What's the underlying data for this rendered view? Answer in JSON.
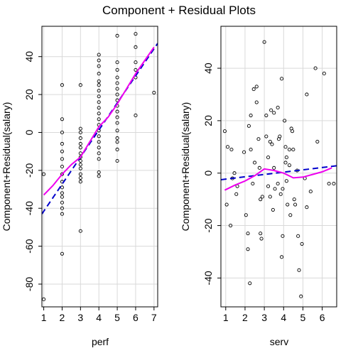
{
  "title": "Component + Residual Plots",
  "colors": {
    "grid": "#d9d9d9",
    "points": "#000000",
    "fit": "#0000cc",
    "smooth": "#ee00ee",
    "frame": "#000000"
  },
  "chart_data": [
    {
      "type": "scatter",
      "xlabel": "perf",
      "ylabel": "Component+Residual(salary)",
      "xlim": [
        0.9,
        7.2
      ],
      "ylim": [
        -92,
        56
      ],
      "xticks": [
        1,
        2,
        3,
        4,
        5,
        6,
        7
      ],
      "yticks": [
        -80,
        -60,
        -40,
        -20,
        0,
        20,
        40
      ],
      "grid": true,
      "points": [
        [
          1,
          -88
        ],
        [
          1,
          -22
        ],
        [
          2,
          25
        ],
        [
          2,
          7
        ],
        [
          2,
          0
        ],
        [
          2,
          -6
        ],
        [
          2,
          -10
        ],
        [
          2,
          -14
        ],
        [
          2,
          -18
        ],
        [
          2,
          -22
        ],
        [
          2,
          -26
        ],
        [
          2,
          -29
        ],
        [
          2,
          -32
        ],
        [
          2,
          -34
        ],
        [
          2,
          -37
        ],
        [
          2,
          -40
        ],
        [
          2,
          -43
        ],
        [
          2,
          -64
        ],
        [
          3,
          25
        ],
        [
          3,
          2
        ],
        [
          3,
          0
        ],
        [
          3,
          -3
        ],
        [
          3,
          -6
        ],
        [
          3,
          -8
        ],
        [
          3,
          -11
        ],
        [
          3,
          -13
        ],
        [
          3,
          -15
        ],
        [
          3,
          -17
        ],
        [
          3,
          -19
        ],
        [
          3,
          -22
        ],
        [
          3,
          -24
        ],
        [
          3,
          -26
        ],
        [
          3,
          -52
        ],
        [
          4,
          41
        ],
        [
          4,
          38
        ],
        [
          4,
          35
        ],
        [
          4,
          31
        ],
        [
          4,
          27
        ],
        [
          4,
          25
        ],
        [
          4,
          22
        ],
        [
          4,
          19
        ],
        [
          4,
          16
        ],
        [
          4,
          13
        ],
        [
          4,
          10
        ],
        [
          4,
          7
        ],
        [
          4,
          4
        ],
        [
          4,
          1
        ],
        [
          4,
          -2
        ],
        [
          4,
          -5
        ],
        [
          4,
          -8
        ],
        [
          4,
          -11
        ],
        [
          4,
          -14
        ],
        [
          4,
          -21
        ],
        [
          4,
          -23
        ],
        [
          5,
          51
        ],
        [
          5,
          37
        ],
        [
          5,
          33
        ],
        [
          5,
          29
        ],
        [
          5,
          26
        ],
        [
          5,
          23
        ],
        [
          5,
          20
        ],
        [
          5,
          17
        ],
        [
          5,
          14
        ],
        [
          5,
          11
        ],
        [
          5,
          8
        ],
        [
          5,
          5
        ],
        [
          5,
          1
        ],
        [
          5,
          -3
        ],
        [
          5,
          -5
        ],
        [
          5,
          -9
        ],
        [
          5,
          -15
        ],
        [
          6,
          52
        ],
        [
          6,
          45
        ],
        [
          6,
          37
        ],
        [
          6,
          33
        ],
        [
          6,
          29
        ],
        [
          6,
          9
        ],
        [
          7,
          21
        ]
      ],
      "fit_line": {
        "x": [
          0.9,
          7.2
        ],
        "y": [
          -43,
          47
        ]
      },
      "smooth": {
        "x": [
          1,
          1.5,
          2,
          2.5,
          3,
          3.5,
          4,
          4.5,
          5,
          5.5,
          6,
          6.5,
          7
        ],
        "y": [
          -33,
          -28,
          -22,
          -17,
          -13,
          -5,
          3,
          8,
          15,
          23,
          31,
          38,
          45
        ]
      }
    },
    {
      "type": "scatter",
      "xlabel": "serv",
      "ylabel": "Component+Residual(salary)",
      "xlim": [
        0.75,
        6.75
      ],
      "ylim": [
        -51,
        56
      ],
      "xticks": [
        1,
        2,
        3,
        4,
        5,
        6
      ],
      "yticks": [
        -40,
        -20,
        0,
        20,
        40
      ],
      "grid": true,
      "points": [
        [
          0.95,
          16
        ],
        [
          1.05,
          -12
        ],
        [
          1.1,
          10
        ],
        [
          1.3,
          9
        ],
        [
          1.45,
          0
        ],
        [
          1.55,
          -8
        ],
        [
          1.6,
          -5
        ],
        [
          1.25,
          -20
        ],
        [
          1.35,
          -2
        ],
        [
          1.95,
          8
        ],
        [
          2.05,
          -16
        ],
        [
          2.15,
          -23
        ],
        [
          2.15,
          -29
        ],
        [
          2.2,
          18
        ],
        [
          2.3,
          22
        ],
        [
          2.3,
          9
        ],
        [
          2.25,
          -42
        ],
        [
          2.4,
          -4
        ],
        [
          2.45,
          32
        ],
        [
          2.5,
          4
        ],
        [
          2.6,
          33
        ],
        [
          2.6,
          27
        ],
        [
          2.7,
          13
        ],
        [
          2.75,
          2
        ],
        [
          2.8,
          -10
        ],
        [
          2.8,
          -23
        ],
        [
          2.85,
          -25
        ],
        [
          2.9,
          -9
        ],
        [
          3,
          50
        ],
        [
          3.1,
          22
        ],
        [
          3.1,
          14
        ],
        [
          3.2,
          6
        ],
        [
          3.2,
          -5
        ],
        [
          3.3,
          -9
        ],
        [
          3.3,
          12
        ],
        [
          3.35,
          24
        ],
        [
          3.4,
          11
        ],
        [
          3.45,
          -14
        ],
        [
          3.5,
          23
        ],
        [
          3.5,
          2
        ],
        [
          3.55,
          -6
        ],
        [
          3.7,
          25
        ],
        [
          3.7,
          -4
        ],
        [
          3.75,
          13
        ],
        [
          3.8,
          14
        ],
        [
          3.85,
          -8
        ],
        [
          3.9,
          36
        ],
        [
          3.9,
          -32
        ],
        [
          3.95,
          -6
        ],
        [
          3.95,
          -24
        ],
        [
          4.05,
          20
        ],
        [
          4.1,
          10
        ],
        [
          4.1,
          4
        ],
        [
          4.15,
          6
        ],
        [
          4.15,
          -3
        ],
        [
          4.2,
          -12
        ],
        [
          4.3,
          3
        ],
        [
          4.3,
          9
        ],
        [
          4.35,
          -16
        ],
        [
          4.4,
          17
        ],
        [
          4.45,
          16
        ],
        [
          4.5,
          9
        ],
        [
          4.55,
          -10
        ],
        [
          4.6,
          -12
        ],
        [
          4.7,
          1
        ],
        [
          4.75,
          -24
        ],
        [
          4.8,
          -37
        ],
        [
          4.9,
          -47
        ],
        [
          4.95,
          -27
        ],
        [
          5.2,
          30
        ],
        [
          5.1,
          -2
        ],
        [
          5.2,
          -13
        ],
        [
          5.4,
          -7
        ],
        [
          5.65,
          40
        ],
        [
          5.75,
          12
        ],
        [
          6.1,
          38
        ],
        [
          6.35,
          -4
        ],
        [
          6.6,
          -4
        ]
      ],
      "fit_line": {
        "x": [
          0.75,
          6.75
        ],
        "y": [
          -2.5,
          2.8
        ]
      },
      "smooth": {
        "x": [
          0.95,
          1.5,
          2,
          2.5,
          3,
          3.5,
          4,
          4.5,
          5,
          5.5,
          6,
          6.5
        ],
        "y": [
          -6.5,
          -4.5,
          -3,
          -1,
          1.6,
          1,
          0,
          -1.8,
          -1.5,
          -0.5,
          0.5,
          2
        ]
      }
    }
  ]
}
